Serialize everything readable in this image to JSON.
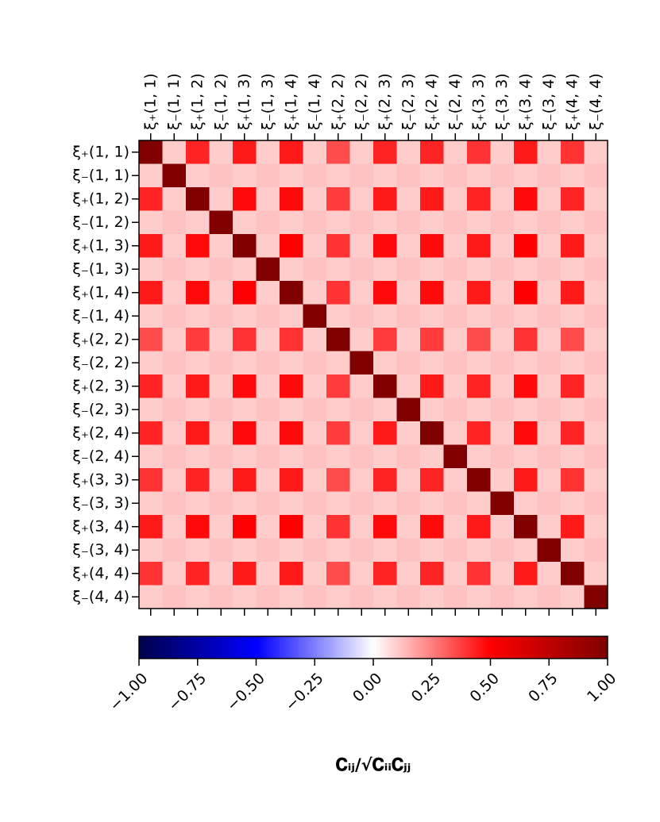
{
  "chart_data": {
    "type": "heatmap",
    "labels": [
      "ξ₊(1, 1)",
      "ξ₋(1, 1)",
      "ξ₊(1, 2)",
      "ξ₋(1, 2)",
      "ξ₊(1, 3)",
      "ξ₋(1, 3)",
      "ξ₊(1, 4)",
      "ξ₋(1, 4)",
      "ξ₊(2, 2)",
      "ξ₋(2, 2)",
      "ξ₊(2, 3)",
      "ξ₋(2, 3)",
      "ξ₊(2, 4)",
      "ξ₋(2, 4)",
      "ξ₊(3, 3)",
      "ξ₋(3, 3)",
      "ξ₊(3, 4)",
      "ξ₋(3, 4)",
      "ξ₊(4, 4)",
      "ξ₋(4, 4)"
    ],
    "z": [
      [
        1,
        0.1,
        0.43,
        0.1,
        0.45,
        0.1,
        0.45,
        0.1,
        0.35,
        0.1,
        0.43,
        0.1,
        0.43,
        0.1,
        0.4,
        0.1,
        0.45,
        0.1,
        0.4,
        0.1
      ],
      [
        0.1,
        1,
        0.1,
        0.12,
        0.1,
        0.12,
        0.1,
        0.12,
        0.1,
        0.12,
        0.1,
        0.12,
        0.1,
        0.12,
        0.1,
        0.12,
        0.1,
        0.12,
        0.1,
        0.12
      ],
      [
        0.43,
        0.1,
        1,
        0.1,
        0.48,
        0.1,
        0.48,
        0.1,
        0.38,
        0.1,
        0.45,
        0.1,
        0.45,
        0.1,
        0.43,
        0.1,
        0.48,
        0.1,
        0.43,
        0.1
      ],
      [
        0.1,
        0.12,
        0.1,
        1,
        0.1,
        0.12,
        0.1,
        0.12,
        0.1,
        0.12,
        0.1,
        0.12,
        0.1,
        0.12,
        0.1,
        0.12,
        0.1,
        0.12,
        0.1,
        0.12
      ],
      [
        0.45,
        0.1,
        0.48,
        0.1,
        1,
        0.1,
        0.5,
        0.1,
        0.4,
        0.1,
        0.48,
        0.1,
        0.48,
        0.1,
        0.45,
        0.1,
        0.5,
        0.1,
        0.45,
        0.1
      ],
      [
        0.1,
        0.12,
        0.1,
        0.12,
        0.1,
        1,
        0.1,
        0.12,
        0.1,
        0.12,
        0.1,
        0.12,
        0.1,
        0.12,
        0.1,
        0.12,
        0.1,
        0.12,
        0.1,
        0.12
      ],
      [
        0.45,
        0.1,
        0.48,
        0.1,
        0.5,
        0.1,
        1,
        0.1,
        0.4,
        0.1,
        0.48,
        0.1,
        0.48,
        0.1,
        0.45,
        0.1,
        0.5,
        0.1,
        0.45,
        0.1
      ],
      [
        0.1,
        0.12,
        0.1,
        0.12,
        0.1,
        0.12,
        0.1,
        1,
        0.1,
        0.12,
        0.1,
        0.12,
        0.1,
        0.12,
        0.1,
        0.12,
        0.1,
        0.12,
        0.1,
        0.12
      ],
      [
        0.35,
        0.1,
        0.38,
        0.1,
        0.4,
        0.1,
        0.4,
        0.1,
        1,
        0.1,
        0.38,
        0.1,
        0.38,
        0.1,
        0.35,
        0.1,
        0.4,
        0.1,
        0.35,
        0.1
      ],
      [
        0.1,
        0.12,
        0.1,
        0.12,
        0.1,
        0.12,
        0.1,
        0.12,
        0.1,
        1,
        0.1,
        0.12,
        0.1,
        0.12,
        0.1,
        0.12,
        0.1,
        0.12,
        0.1,
        0.12
      ],
      [
        0.43,
        0.1,
        0.45,
        0.1,
        0.48,
        0.1,
        0.48,
        0.1,
        0.38,
        0.1,
        1,
        0.1,
        0.45,
        0.1,
        0.43,
        0.1,
        0.48,
        0.1,
        0.43,
        0.1
      ],
      [
        0.1,
        0.12,
        0.1,
        0.12,
        0.1,
        0.12,
        0.1,
        0.12,
        0.1,
        0.12,
        0.1,
        1,
        0.1,
        0.12,
        0.1,
        0.12,
        0.1,
        0.12,
        0.1,
        0.12
      ],
      [
        0.43,
        0.1,
        0.45,
        0.1,
        0.48,
        0.1,
        0.48,
        0.1,
        0.38,
        0.1,
        0.45,
        0.1,
        1,
        0.1,
        0.43,
        0.1,
        0.48,
        0.1,
        0.43,
        0.1
      ],
      [
        0.1,
        0.12,
        0.1,
        0.12,
        0.1,
        0.12,
        0.1,
        0.12,
        0.1,
        0.12,
        0.1,
        0.12,
        0.1,
        1,
        0.1,
        0.12,
        0.1,
        0.12,
        0.1,
        0.12
      ],
      [
        0.4,
        0.1,
        0.43,
        0.1,
        0.45,
        0.1,
        0.45,
        0.1,
        0.35,
        0.1,
        0.43,
        0.1,
        0.43,
        0.1,
        1,
        0.1,
        0.45,
        0.1,
        0.4,
        0.1
      ],
      [
        0.1,
        0.12,
        0.1,
        0.12,
        0.1,
        0.12,
        0.1,
        0.12,
        0.1,
        0.12,
        0.1,
        0.12,
        0.1,
        0.12,
        0.1,
        1,
        0.1,
        0.12,
        0.1,
        0.12
      ],
      [
        0.45,
        0.1,
        0.48,
        0.1,
        0.5,
        0.1,
        0.5,
        0.1,
        0.4,
        0.1,
        0.48,
        0.1,
        0.48,
        0.1,
        0.45,
        0.1,
        1,
        0.1,
        0.45,
        0.1
      ],
      [
        0.1,
        0.12,
        0.1,
        0.12,
        0.1,
        0.12,
        0.1,
        0.12,
        0.1,
        0.12,
        0.1,
        0.12,
        0.1,
        0.12,
        0.1,
        0.12,
        0.1,
        1,
        0.1,
        0.12
      ],
      [
        0.4,
        0.1,
        0.43,
        0.1,
        0.45,
        0.1,
        0.45,
        0.1,
        0.35,
        0.1,
        0.43,
        0.1,
        0.43,
        0.1,
        0.4,
        0.1,
        0.45,
        0.1,
        1,
        0.1
      ],
      [
        0.1,
        0.12,
        0.1,
        0.12,
        0.1,
        0.12,
        0.1,
        0.12,
        0.1,
        0.12,
        0.1,
        0.12,
        0.1,
        0.12,
        0.1,
        0.12,
        0.1,
        0.12,
        0.1,
        1
      ]
    ],
    "colormap": "seismic",
    "clim": [
      -1,
      1
    ],
    "cticks": [
      {
        "value": -1,
        "label": "−1.00"
      },
      {
        "value": -0.75,
        "label": "−0.75"
      },
      {
        "value": -0.5,
        "label": "−0.50"
      },
      {
        "value": -0.25,
        "label": "−0.25"
      },
      {
        "value": 0,
        "label": "0.00"
      },
      {
        "value": 0.25,
        "label": "0.25"
      },
      {
        "value": 0.5,
        "label": "0.50"
      },
      {
        "value": 0.75,
        "label": "0.75"
      },
      {
        "value": 1,
        "label": "1.00"
      }
    ],
    "colorbar_label": "𝐂ᵢⱼ/√𝐂ᵢᵢ𝐂ⱼⱼ"
  }
}
